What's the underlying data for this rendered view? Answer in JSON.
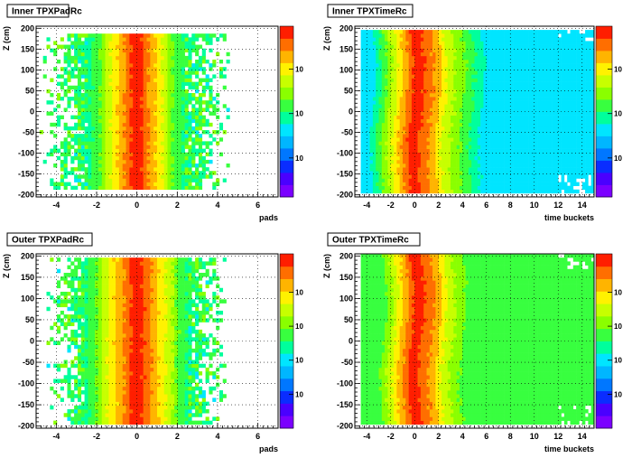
{
  "chart_data": [
    {
      "type": "heatmap",
      "title": "Inner TPXPadRc",
      "xlabel": "pads",
      "ylabel": "Z (cm)",
      "xlim": [
        -5,
        7
      ],
      "ylim": [
        -205,
        205
      ],
      "xticks": [
        "-4",
        "-2",
        "0",
        "2",
        "4",
        "6"
      ],
      "yticks": [
        "-200",
        "-150",
        "-100",
        "-50",
        "0",
        "50",
        "100",
        "150",
        "200"
      ],
      "colorbar_ticks": [
        "10",
        "10",
        "10"
      ],
      "grid": true,
      "colorscale": "rainbow",
      "peak_x": 0,
      "core_halfwidth": 1.6,
      "tail_extent": 4.8,
      "z_range": [
        -185,
        190
      ]
    },
    {
      "type": "heatmap",
      "title": "Inner TPXTimeRc",
      "xlabel": "time buckets",
      "ylabel": "Z (cm)",
      "xlim": [
        -5,
        15
      ],
      "ylim": [
        -205,
        205
      ],
      "xticks": [
        "-4",
        "-2",
        "0",
        "2",
        "4",
        "6",
        "8",
        "10",
        "12",
        "14"
      ],
      "yticks": [
        "-200",
        "-150",
        "-100",
        "-50",
        "0",
        "50",
        "100",
        "150",
        "200"
      ],
      "colorbar_ticks": [
        "10",
        "10",
        "10"
      ],
      "grid": true,
      "colorscale": "rainbow",
      "peak_x": 0,
      "core_halfwidth": 1.6,
      "tail_extent": 15,
      "z_range": [
        -195,
        195
      ]
    },
    {
      "type": "heatmap",
      "title": "Outer TPXPadRc",
      "xlabel": "pads",
      "ylabel": "Z (cm)",
      "xlim": [
        -5,
        7
      ],
      "ylim": [
        -205,
        205
      ],
      "xticks": [
        "-4",
        "-2",
        "0",
        "2",
        "4",
        "6"
      ],
      "yticks": [
        "-200",
        "-150",
        "-100",
        "-50",
        "0",
        "50",
        "100",
        "150",
        "200"
      ],
      "colorbar_ticks": [
        "10",
        "10",
        "10",
        "10"
      ],
      "grid": true,
      "colorscale": "rainbow",
      "peak_x": 0,
      "core_halfwidth": 1.8,
      "tail_extent": 4.5,
      "z_range": [
        -200,
        200
      ]
    },
    {
      "type": "heatmap",
      "title": "Outer TPXTimeRc",
      "xlabel": "time buckets",
      "ylabel": "Z (cm)",
      "xlim": [
        -5,
        15
      ],
      "ylim": [
        -205,
        205
      ],
      "xticks": [
        "-4",
        "-2",
        "0",
        "2",
        "4",
        "6",
        "8",
        "10",
        "12",
        "14"
      ],
      "yticks": [
        "-200",
        "-150",
        "-100",
        "-50",
        "0",
        "50",
        "100",
        "150",
        "200"
      ],
      "colorbar_ticks": [
        "10",
        "10",
        "10",
        "10"
      ],
      "grid": true,
      "colorscale": "rainbow",
      "peak_x": 0,
      "core_halfwidth": 1.6,
      "tail_extent": 15,
      "z_range": [
        -200,
        205
      ]
    }
  ]
}
